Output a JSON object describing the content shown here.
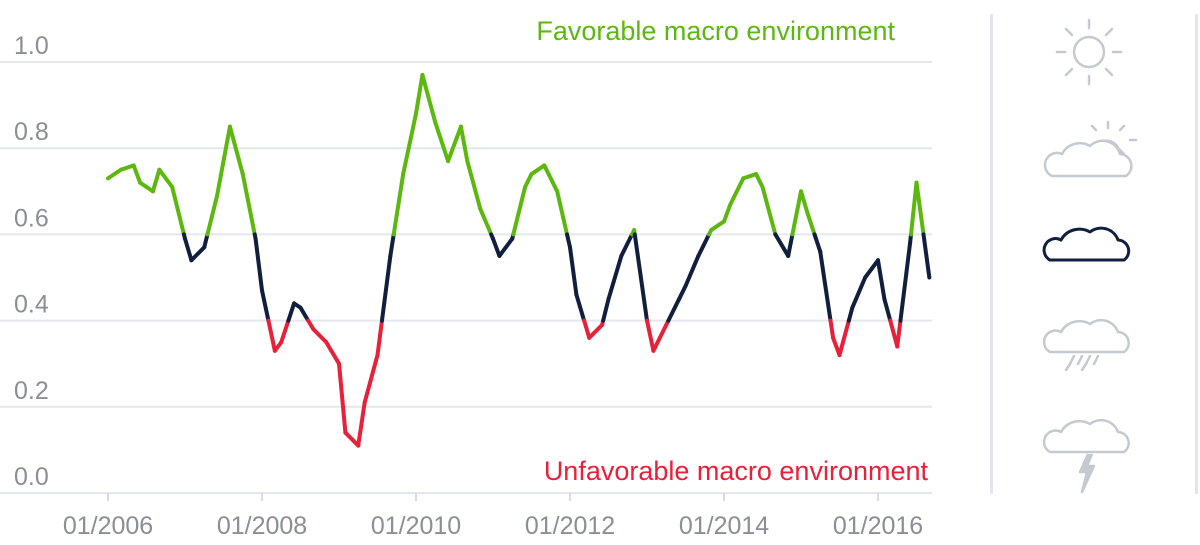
{
  "chart_data": {
    "type": "line",
    "title": "",
    "xlabel": "",
    "ylabel": "",
    "ylim": [
      0.0,
      1.0
    ],
    "y_ticks": [
      "0.0",
      "0.2",
      "0.4",
      "0.6",
      "0.8",
      "1.0"
    ],
    "x_ticks": [
      "01/2006",
      "01/2008",
      "01/2010",
      "01/2012",
      "01/2014",
      "01/2016"
    ],
    "xlim": [
      "2006-01",
      "2016-10"
    ],
    "grid": "horizontal",
    "thresholds": {
      "upper": 0.6,
      "lower": 0.4
    },
    "annotations": {
      "top": "Favorable macro environment",
      "bottom": "Unfavorable macro environment"
    },
    "series": [
      {
        "x": [
          "2006-01",
          "2006-03",
          "2006-05",
          "2006-06",
          "2006-08",
          "2006-09",
          "2006-11",
          "2007-01",
          "2007-02",
          "2007-04",
          "2007-06",
          "2007-08",
          "2007-10",
          "2007-12",
          "2008-01",
          "2008-03",
          "2008-04",
          "2008-06",
          "2008-07",
          "2008-09",
          "2008-11",
          "2009-01",
          "2009-02",
          "2009-04",
          "2009-05",
          "2009-07",
          "2009-09",
          "2009-11",
          "2010-01",
          "2010-02",
          "2010-04",
          "2010-06",
          "2010-08",
          "2010-09",
          "2010-11",
          "2011-01",
          "2011-02",
          "2011-04",
          "2011-06",
          "2011-07",
          "2011-09",
          "2011-11",
          "2012-01",
          "2012-02",
          "2012-04",
          "2012-06",
          "2012-07",
          "2012-09",
          "2012-11",
          "2013-01",
          "2013-02",
          "2013-04",
          "2013-06",
          "2013-07",
          "2013-09",
          "2013-11",
          "2014-01",
          "2014-02",
          "2014-04",
          "2014-06",
          "2014-07",
          "2014-09",
          "2014-11",
          "2015-01",
          "2015-02",
          "2015-04",
          "2015-06",
          "2015-07",
          "2015-09",
          "2015-11",
          "2016-01",
          "2016-02",
          "2016-04",
          "2016-06",
          "2016-07",
          "2016-09"
        ],
        "values": [
          0.73,
          0.75,
          0.76,
          0.72,
          0.7,
          0.75,
          0.71,
          0.59,
          0.54,
          0.57,
          0.69,
          0.85,
          0.74,
          0.59,
          0.47,
          0.33,
          0.35,
          0.44,
          0.43,
          0.38,
          0.35,
          0.3,
          0.14,
          0.11,
          0.21,
          0.32,
          0.55,
          0.74,
          0.88,
          0.97,
          0.86,
          0.77,
          0.85,
          0.77,
          0.66,
          0.59,
          0.55,
          0.59,
          0.71,
          0.74,
          0.76,
          0.7,
          0.57,
          0.46,
          0.36,
          0.39,
          0.45,
          0.55,
          0.61,
          0.4,
          0.33,
          0.39,
          0.45,
          0.48,
          0.55,
          0.61,
          0.63,
          0.67,
          0.73,
          0.74,
          0.71,
          0.6,
          0.55,
          0.7,
          0.65,
          0.56,
          0.36,
          0.32,
          0.43,
          0.5,
          0.54,
          0.45,
          0.34,
          0.58,
          0.72,
          0.5
        ],
        "colors": {
          "favorable": "#5cb80f",
          "neutral": "#0f1f3d",
          "unfavorable": "#e8203a"
        }
      }
    ]
  },
  "weather_icons": [
    {
      "name": "sun-icon",
      "color": "#c4cacf"
    },
    {
      "name": "partly-cloudy-icon",
      "color": "#c4cacf"
    },
    {
      "name": "cloud-icon",
      "color": "#0f1f3d",
      "highlighted": true
    },
    {
      "name": "rain-cloud-icon",
      "color": "#c4cacf"
    },
    {
      "name": "thunderstorm-icon",
      "color": "#c4cacf"
    }
  ]
}
